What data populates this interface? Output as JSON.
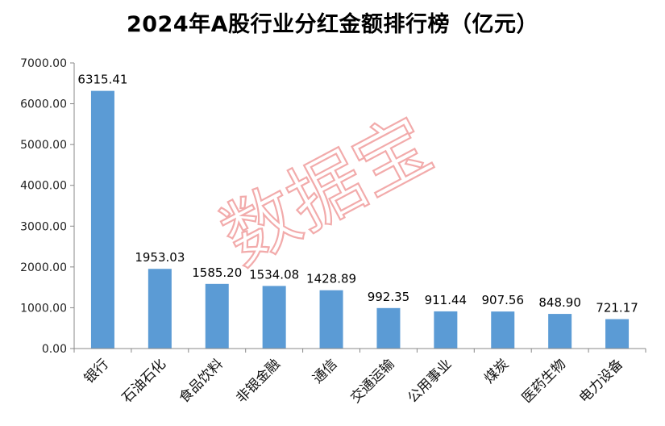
{
  "title": "2024年A股行业分红金额排行榜（亿元）",
  "watermark": "数据宝",
  "colors": {
    "bar": "#5b9bd5",
    "axis": "#888888",
    "watermark": "#ee8f8f"
  },
  "chart_data": {
    "type": "bar",
    "title": "2024年A股行业分红金额排行榜（亿元）",
    "xlabel": "",
    "ylabel": "",
    "categories": [
      "银行",
      "石油石化",
      "食品饮料",
      "非银金融",
      "通信",
      "交通运输",
      "公用事业",
      "煤炭",
      "医药生物",
      "电力设备"
    ],
    "values": [
      6315.41,
      1953.03,
      1585.2,
      1534.08,
      1428.89,
      992.35,
      911.44,
      907.56,
      848.9,
      721.17
    ],
    "value_labels": [
      "6315.41",
      "1953.03",
      "1585.20",
      "1534.08",
      "1428.89",
      "992.35",
      "911.44",
      "907.56",
      "848.90",
      "721.17"
    ],
    "yticks": [
      "0.00",
      "1000.00",
      "2000.00",
      "3000.00",
      "4000.00",
      "5000.00",
      "6000.00",
      "7000.00"
    ],
    "ylim": [
      0,
      7000
    ],
    "grid": false,
    "legend": "none"
  }
}
